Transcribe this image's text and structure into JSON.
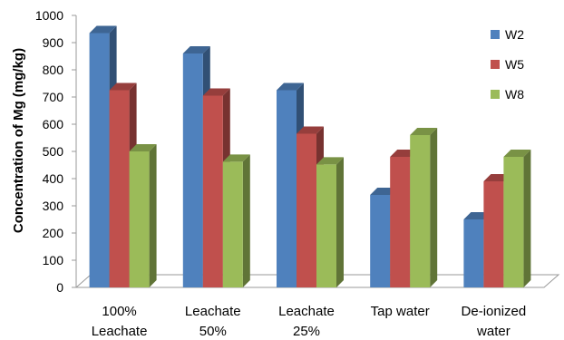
{
  "chart_data": {
    "type": "bar",
    "title": "",
    "xlabel": "",
    "ylabel": "Concentration of Mg (mg/kg)",
    "ylim": [
      0,
      1000
    ],
    "yticks": [
      "0",
      "100",
      "200",
      "300",
      "400",
      "500",
      "600",
      "700",
      "800",
      "900",
      "1000"
    ],
    "categories": [
      [
        "100%",
        "Leachate"
      ],
      [
        "Leachate",
        "50%"
      ],
      [
        "Leachate",
        "25%"
      ],
      [
        "Tap water"
      ],
      [
        "De-ionized",
        "water"
      ]
    ],
    "series": [
      {
        "name": "W2",
        "values": [
          935,
          860,
          725,
          340,
          250
        ],
        "color": "#4F81BD"
      },
      {
        "name": "W5",
        "values": [
          725,
          705,
          565,
          480,
          390
        ],
        "color": "#C0504D"
      },
      {
        "name": "W8",
        "values": [
          500,
          462,
          452,
          560,
          480
        ],
        "color": "#9BBB59"
      }
    ],
    "grid": false,
    "legend_position": "right",
    "style": "3d-clustered-column"
  }
}
